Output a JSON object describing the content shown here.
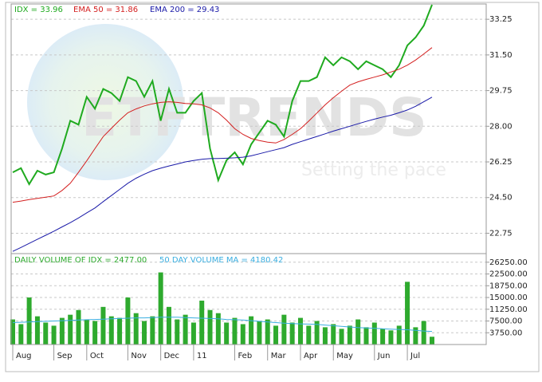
{
  "chart_data": [
    {
      "type": "line",
      "watermark": "ETFTRENDS",
      "watermark_subtitle": "Setting the pace",
      "ylim": [
        21.75,
        34.0
      ],
      "yticks": [
        22.75,
        {
          "value": 24.5,
          "label": "24.50"
        },
        26.25,
        {
          "value": 28.0,
          "label": "28.00"
        },
        29.75,
        {
          "value": 31.5,
          "label": "31.50"
        },
        33.25
      ],
      "grid": true,
      "series": [
        {
          "name": "IDX = 33.96",
          "color": "#1faa1f",
          "width": 2,
          "values": [
            25.74,
            25.94,
            25.16,
            25.82,
            25.63,
            25.74,
            26.91,
            28.27,
            28.08,
            29.44,
            28.86,
            29.83,
            29.63,
            29.24,
            30.41,
            30.22,
            29.44,
            30.22,
            28.27,
            29.83,
            28.66,
            28.66,
            29.24,
            29.63,
            26.91,
            25.35,
            26.33,
            26.72,
            26.13,
            27.11,
            27.69,
            28.27,
            28.08,
            27.49,
            29.24,
            30.22,
            30.22,
            30.41,
            31.38,
            30.99,
            31.38,
            31.19,
            30.8,
            31.19,
            30.99,
            30.8,
            30.41,
            30.99,
            31.97,
            32.36,
            32.94,
            33.96
          ]
        },
        {
          "name": "EMA 50 = 31.86",
          "color": "#d42020",
          "width": 1,
          "values": [
            24.27,
            24.33,
            24.4,
            24.46,
            24.52,
            24.58,
            24.85,
            25.2,
            25.74,
            26.3,
            26.9,
            27.49,
            27.9,
            28.3,
            28.66,
            28.85,
            29.0,
            29.1,
            29.17,
            29.2,
            29.17,
            29.12,
            29.1,
            29.05,
            28.9,
            28.66,
            28.3,
            27.88,
            27.6,
            27.4,
            27.3,
            27.22,
            27.18,
            27.35,
            27.6,
            27.88,
            28.25,
            28.65,
            29.05,
            29.4,
            29.72,
            30.02,
            30.18,
            30.3,
            30.41,
            30.52,
            30.66,
            30.8,
            31.0,
            31.25,
            31.55,
            31.86
          ]
        },
        {
          "name": "EMA 200 = 29.43",
          "color": "#1a1aa8",
          "width": 1,
          "values": [
            21.86,
            22.05,
            22.25,
            22.45,
            22.65,
            22.85,
            23.06,
            23.27,
            23.5,
            23.75,
            23.99,
            24.3,
            24.6,
            24.9,
            25.2,
            25.45,
            25.65,
            25.82,
            25.94,
            26.05,
            26.15,
            26.25,
            26.32,
            26.38,
            26.41,
            26.42,
            26.43,
            26.45,
            26.48,
            26.55,
            26.65,
            26.75,
            26.85,
            26.95,
            27.11,
            27.24,
            27.37,
            27.5,
            27.63,
            27.76,
            27.88,
            28.0,
            28.12,
            28.24,
            28.35,
            28.45,
            28.54,
            28.66,
            28.8,
            28.98,
            29.2,
            29.43
          ]
        }
      ]
    },
    {
      "type": "bar",
      "categories": [
        "Aug",
        null,
        null,
        null,
        null,
        "Sep",
        null,
        null,
        null,
        "Oct",
        null,
        null,
        null,
        null,
        "Nov",
        null,
        null,
        null,
        "Dec",
        null,
        null,
        null,
        "11",
        null,
        null,
        null,
        null,
        "Feb",
        null,
        null,
        null,
        "Mar",
        null,
        null,
        null,
        "Apr",
        null,
        null,
        null,
        "May",
        null,
        null,
        null,
        null,
        "Jun",
        null,
        null,
        null,
        "Jul",
        null,
        null,
        null
      ],
      "ylim": [
        0,
        29000
      ],
      "yticks": [
        {
          "value": 3750,
          "label": "3750.00"
        },
        {
          "value": 7500,
          "label": "7500.00"
        },
        {
          "value": 11250,
          "label": "11250.00"
        },
        {
          "value": 15000,
          "label": "15000.00"
        },
        {
          "value": 18750,
          "label": "18750.00"
        },
        {
          "value": 22500,
          "label": "22500.00"
        },
        {
          "value": 26250,
          "label": "26250.00"
        }
      ],
      "grid": true,
      "series": [
        {
          "name": "DAILY VOLUME OF IDX = 2477.00",
          "color": "#2eaa2e",
          "type": "bar",
          "values": [
            8000,
            6500,
            15000,
            9000,
            7000,
            6000,
            8500,
            9500,
            11000,
            8000,
            7500,
            12000,
            9000,
            8500,
            15000,
            10000,
            7500,
            9000,
            23000,
            12000,
            8000,
            9500,
            7000,
            14000,
            11000,
            10000,
            7000,
            8500,
            6500,
            9000,
            7500,
            8000,
            6000,
            9500,
            7000,
            8500,
            6000,
            7500,
            5500,
            6500,
            5000,
            6000,
            8000,
            5500,
            7000,
            5000,
            4500,
            6000,
            20000,
            5500,
            7500,
            2477
          ]
        },
        {
          "name": "50 DAY VOLUME MA = 4180.42",
          "color": "#3aaee0",
          "type": "line",
          "values": [
            7000,
            7100,
            7200,
            7300,
            7400,
            7500,
            7600,
            7700,
            7800,
            7900,
            8000,
            8100,
            8200,
            8300,
            8400,
            8500,
            8500,
            8600,
            8700,
            8700,
            8700,
            8600,
            8500,
            8400,
            8300,
            8200,
            8000,
            7900,
            7800,
            7600,
            7400,
            7200,
            7000,
            6800,
            6700,
            6600,
            6500,
            6400,
            6200,
            6000,
            5800,
            5600,
            5400,
            5300,
            5200,
            5000,
            4900,
            4800,
            4700,
            4500,
            4300,
            4180.42
          ]
        }
      ]
    }
  ]
}
